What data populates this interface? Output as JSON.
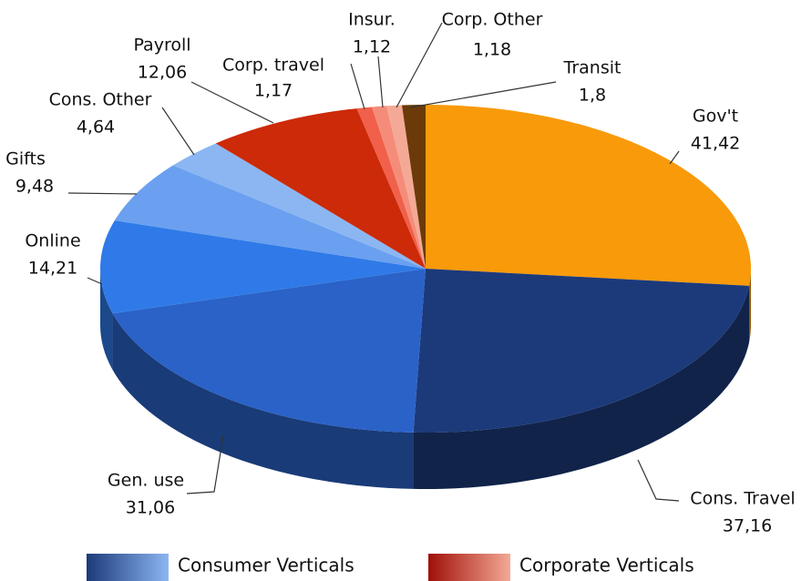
{
  "chart_data": {
    "type": "pie3d",
    "categories": [
      "Gov't",
      "Cons. Travel",
      "Gen. use",
      "Online",
      "Gifts",
      "Cons. Other",
      "Payroll",
      "Corp. travel",
      "Insur.",
      "Corp. Other",
      "Transit"
    ],
    "values": [
      41.42,
      37.16,
      31.06,
      14.21,
      9.48,
      4.64,
      12.06,
      1.17,
      1.12,
      1.18,
      1.8
    ],
    "value_labels": [
      "41,42",
      "37,16",
      "31,06",
      "14,21",
      "9,48",
      "4,64",
      "12,06",
      "1,17",
      "1,12",
      "1,18",
      "1,8"
    ],
    "colors": [
      "#f89a0a",
      "#1c3a7a",
      "#2a62c8",
      "#2f7ae8",
      "#6aa0ef",
      "#8cb6f2",
      "#cc2a08",
      "#f0604a",
      "#f58c7a",
      "#f4a996",
      "#6b3a08"
    ],
    "legend": [
      {
        "name": "Consumer Verticals",
        "colors": [
          "#1c3a7a",
          "#8cb6f2"
        ]
      },
      {
        "name": "Corporate Verticals",
        "colors": [
          "#a01008",
          "#f4a996"
        ]
      }
    ]
  }
}
